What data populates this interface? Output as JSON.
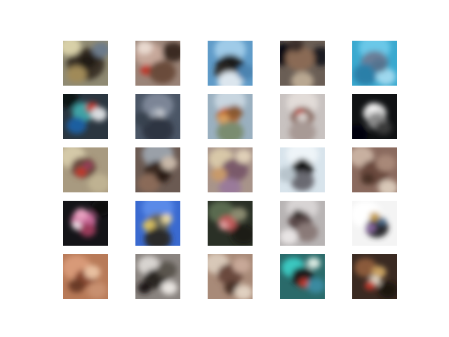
{
  "figure": {
    "rows": 5,
    "cols": 5,
    "background": "#ffffff",
    "samples": [
      {
        "base": "#8f8a73",
        "blobs": [
          [
            "#3b3026",
            0.5,
            0.52,
            0.42
          ],
          [
            "#d8d0a8",
            0.15,
            0.12,
            0.25
          ],
          [
            "#6c7a8a",
            0.85,
            0.2,
            0.2
          ],
          [
            "#a08a58",
            0.3,
            0.75,
            0.22
          ],
          [
            "#221a14",
            0.55,
            0.45,
            0.2
          ]
        ]
      },
      {
        "base": "#9a8478",
        "blobs": [
          [
            "#c6a79a",
            0.3,
            0.3,
            0.32
          ],
          [
            "#3b2a22",
            0.85,
            0.25,
            0.25
          ],
          [
            "#c0392b",
            0.25,
            0.65,
            0.14
          ],
          [
            "#6b4b3a",
            0.6,
            0.7,
            0.3
          ],
          [
            "#e9d9cf",
            0.2,
            0.15,
            0.18
          ]
        ]
      },
      {
        "base": "#5f9bc8",
        "blobs": [
          [
            "#9fcbe8",
            0.5,
            0.2,
            0.35
          ],
          [
            "#1c1a1a",
            0.5,
            0.58,
            0.32
          ],
          [
            "#2e2a28",
            0.35,
            0.7,
            0.2
          ],
          [
            "#dce6ee",
            0.5,
            0.92,
            0.28
          ],
          [
            "#4c83b0",
            0.85,
            0.7,
            0.2
          ]
        ]
      },
      {
        "base": "#6a5e55",
        "blobs": [
          [
            "#0f1115",
            0.1,
            0.3,
            0.3
          ],
          [
            "#1a1c20",
            0.92,
            0.35,
            0.25
          ],
          [
            "#8a6a55",
            0.45,
            0.4,
            0.32
          ],
          [
            "#b9a892",
            0.5,
            0.9,
            0.25
          ],
          [
            "#3a2f2a",
            0.35,
            0.1,
            0.18
          ]
        ]
      },
      {
        "base": "#3aa9cf",
        "blobs": [
          [
            "#6bc8e8",
            0.5,
            0.15,
            0.35
          ],
          [
            "#6a7e98",
            0.5,
            0.48,
            0.3
          ],
          [
            "#2a7fa8",
            0.3,
            0.75,
            0.28
          ],
          [
            "#9ed8ee",
            0.75,
            0.8,
            0.22
          ],
          [
            "#55738f",
            0.6,
            0.55,
            0.18
          ]
        ]
      },
      {
        "base": "#2b3640",
        "blobs": [
          [
            "#3fa3a5",
            0.45,
            0.4,
            0.25
          ],
          [
            "#c0392b",
            0.65,
            0.3,
            0.14
          ],
          [
            "#1e5fa0",
            0.3,
            0.7,
            0.22
          ],
          [
            "#d9dde0",
            0.8,
            0.45,
            0.18
          ],
          [
            "#0f1418",
            0.1,
            0.1,
            0.25
          ]
        ]
      },
      {
        "base": "#4b5666",
        "blobs": [
          [
            "#7b8596",
            0.5,
            0.25,
            0.35
          ],
          [
            "#9aa3b0",
            0.5,
            0.45,
            0.18
          ],
          [
            "#2e3642",
            0.5,
            0.8,
            0.35
          ],
          [
            "#c9ccd2",
            0.55,
            0.42,
            0.08
          ],
          [
            "#39424f",
            0.15,
            0.55,
            0.2
          ]
        ]
      },
      {
        "base": "#9ab0c0",
        "blobs": [
          [
            "#c8d6e0",
            0.5,
            0.15,
            0.35
          ],
          [
            "#c0662a",
            0.45,
            0.5,
            0.25
          ],
          [
            "#8a5a32",
            0.6,
            0.4,
            0.18
          ],
          [
            "#7a8c70",
            0.5,
            0.85,
            0.3
          ],
          [
            "#d8a060",
            0.35,
            0.55,
            0.12
          ]
        ]
      },
      {
        "base": "#c8c2c0",
        "blobs": [
          [
            "#e2dcd8",
            0.5,
            0.2,
            0.35
          ],
          [
            "#8a6a60",
            0.5,
            0.5,
            0.26
          ],
          [
            "#c0392b",
            0.45,
            0.42,
            0.1
          ],
          [
            "#d8d0cc",
            0.5,
            0.52,
            0.12
          ],
          [
            "#a89a95",
            0.5,
            0.85,
            0.3
          ]
        ]
      },
      {
        "base": "#101214",
        "blobs": [
          [
            "#d8d8d8",
            0.5,
            0.42,
            0.26
          ],
          [
            "#8a8a8a",
            0.55,
            0.6,
            0.22
          ],
          [
            "#f0f0f0",
            0.45,
            0.3,
            0.12
          ],
          [
            "#3a3a3a",
            0.7,
            0.75,
            0.18
          ],
          [
            "#050607",
            0.1,
            0.9,
            0.25
          ]
        ]
      },
      {
        "base": "#a89a80",
        "blobs": [
          [
            "#d4c9a8",
            0.2,
            0.2,
            0.3
          ],
          [
            "#6b4a40",
            0.45,
            0.45,
            0.28
          ],
          [
            "#c0392b",
            0.4,
            0.55,
            0.12
          ],
          [
            "#9a3a5a",
            0.55,
            0.4,
            0.1
          ],
          [
            "#bfb292",
            0.8,
            0.8,
            0.25
          ]
        ]
      },
      {
        "base": "#6b5a52",
        "blobs": [
          [
            "#9aa0a8",
            0.5,
            0.15,
            0.35
          ],
          [
            "#3a2a22",
            0.5,
            0.55,
            0.3
          ],
          [
            "#8a6a58",
            0.3,
            0.8,
            0.25
          ],
          [
            "#c8b8a8",
            0.75,
            0.35,
            0.18
          ],
          [
            "#2a1e18",
            0.6,
            0.65,
            0.15
          ]
        ]
      },
      {
        "base": "#a8948a",
        "blobs": [
          [
            "#d8c8a8",
            0.3,
            0.25,
            0.28
          ],
          [
            "#7a5a6a",
            0.6,
            0.5,
            0.3
          ],
          [
            "#c89a6a",
            0.25,
            0.6,
            0.18
          ],
          [
            "#9a7a9a",
            0.5,
            0.9,
            0.25
          ],
          [
            "#e0d0b8",
            0.8,
            0.2,
            0.18
          ]
        ]
      },
      {
        "base": "#d8e4ec",
        "blobs": [
          [
            "#eef4f8",
            0.5,
            0.15,
            0.35
          ],
          [
            "#1a1a1c",
            0.5,
            0.48,
            0.24
          ],
          [
            "#6a6a72",
            0.5,
            0.75,
            0.26
          ],
          [
            "#b8c4cc",
            0.15,
            0.6,
            0.2
          ],
          [
            "#0e0e10",
            0.5,
            0.35,
            0.12
          ]
        ]
      },
      {
        "base": "#8a6a5e",
        "blobs": [
          [
            "#c8b0a0",
            0.2,
            0.2,
            0.28
          ],
          [
            "#6a4a3e",
            0.5,
            0.55,
            0.32
          ],
          [
            "#a88878",
            0.75,
            0.35,
            0.22
          ],
          [
            "#d8c8b8",
            0.8,
            0.9,
            0.22
          ],
          [
            "#4a3028",
            0.35,
            0.7,
            0.15
          ]
        ]
      },
      {
        "base": "#141418",
        "blobs": [
          [
            "#c86a9a",
            0.45,
            0.45,
            0.28
          ],
          [
            "#e8a0c0",
            0.4,
            0.3,
            0.15
          ],
          [
            "#9a3a5a",
            0.55,
            0.65,
            0.18
          ],
          [
            "#f0e0e8",
            0.3,
            0.55,
            0.1
          ],
          [
            "#08080a",
            0.85,
            0.15,
            0.22
          ]
        ]
      },
      {
        "base": "#3a6ad0",
        "blobs": [
          [
            "#5a8ae8",
            0.5,
            0.15,
            0.35
          ],
          [
            "#6a6a5a",
            0.5,
            0.5,
            0.26
          ],
          [
            "#d8c060",
            0.3,
            0.55,
            0.14
          ],
          [
            "#2a2a2a",
            0.5,
            0.85,
            0.3
          ],
          [
            "#e8d8a0",
            0.7,
            0.4,
            0.12
          ]
        ]
      },
      {
        "base": "#2a3026",
        "blobs": [
          [
            "#5a6a50",
            0.3,
            0.25,
            0.3
          ],
          [
            "#c05a5a",
            0.45,
            0.5,
            0.2
          ],
          [
            "#e0a0a0",
            0.35,
            0.55,
            0.1
          ],
          [
            "#1a1e18",
            0.8,
            0.75,
            0.28
          ],
          [
            "#8a8a70",
            0.7,
            0.3,
            0.18
          ]
        ]
      },
      {
        "base": "#b8b4b4",
        "blobs": [
          [
            "#d8d4d4",
            0.5,
            0.15,
            0.35
          ],
          [
            "#5a4a48",
            0.45,
            0.45,
            0.26
          ],
          [
            "#8a7a78",
            0.6,
            0.7,
            0.25
          ],
          [
            "#e8e4e4",
            0.2,
            0.8,
            0.2
          ],
          [
            "#3a302e",
            0.4,
            0.3,
            0.12
          ]
        ]
      },
      {
        "base": "#f4f4f4",
        "blobs": [
          [
            "#ffffff",
            0.3,
            0.3,
            0.35
          ],
          [
            "#2a2a2e",
            0.55,
            0.6,
            0.26
          ],
          [
            "#c8a048",
            0.5,
            0.35,
            0.12
          ],
          [
            "#8a6aa0",
            0.4,
            0.6,
            0.12
          ],
          [
            "#4a6a8a",
            0.65,
            0.45,
            0.1
          ]
        ]
      },
      {
        "base": "#b87a58",
        "blobs": [
          [
            "#d89a78",
            0.3,
            0.3,
            0.32
          ],
          [
            "#8a4a30",
            0.5,
            0.55,
            0.25
          ],
          [
            "#e8c0a0",
            0.65,
            0.4,
            0.18
          ],
          [
            "#6a3a28",
            0.3,
            0.7,
            0.18
          ],
          [
            "#c89070",
            0.75,
            0.8,
            0.22
          ]
        ]
      },
      {
        "base": "#8a8480",
        "blobs": [
          [
            "#d8d4d0",
            0.3,
            0.25,
            0.25
          ],
          [
            "#2a2624",
            0.45,
            0.55,
            0.26
          ],
          [
            "#5a544e",
            0.7,
            0.35,
            0.22
          ],
          [
            "#e8e4e0",
            0.75,
            0.75,
            0.18
          ],
          [
            "#1a1816",
            0.2,
            0.75,
            0.15
          ]
        ]
      },
      {
        "base": "#a88a78",
        "blobs": [
          [
            "#d8c8b8",
            0.2,
            0.2,
            0.28
          ],
          [
            "#6a4a3e",
            0.5,
            0.45,
            0.28
          ],
          [
            "#c8a898",
            0.75,
            0.25,
            0.2
          ],
          [
            "#4a3028",
            0.55,
            0.75,
            0.18
          ],
          [
            "#e0d0c0",
            0.8,
            0.85,
            0.2
          ]
        ]
      },
      {
        "base": "#2a6a6a",
        "blobs": [
          [
            "#3ac8c0",
            0.3,
            0.3,
            0.26
          ],
          [
            "#1a1a1e",
            0.5,
            0.5,
            0.25
          ],
          [
            "#c0392b",
            0.55,
            0.65,
            0.12
          ],
          [
            "#3a8aa0",
            0.8,
            0.7,
            0.2
          ],
          [
            "#d8e8e0",
            0.75,
            0.2,
            0.15
          ]
        ]
      },
      {
        "base": "#3a2a22",
        "blobs": [
          [
            "#8a5a3a",
            0.3,
            0.3,
            0.25
          ],
          [
            "#c8a060",
            0.6,
            0.4,
            0.16
          ],
          [
            "#d8d0c0",
            0.5,
            0.6,
            0.14
          ],
          [
            "#c0392b",
            0.4,
            0.7,
            0.12
          ],
          [
            "#1a1210",
            0.8,
            0.8,
            0.22
          ]
        ]
      }
    ]
  }
}
